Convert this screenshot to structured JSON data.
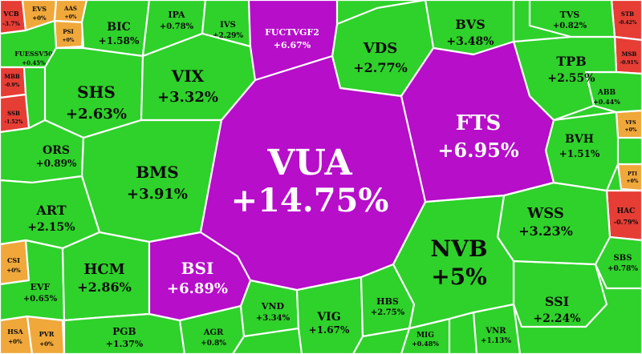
{
  "heatmap": {
    "colors": {
      "up": "#2fd12b",
      "ceiling": "#b60ec9",
      "down": "#e63d35",
      "flat": "#f0a83b"
    },
    "tiles": [
      {
        "symbol": "VUA",
        "change": "+14.75%",
        "status": "ceiling"
      },
      {
        "symbol": "FTS",
        "change": "+6.95%",
        "status": "ceiling"
      },
      {
        "symbol": "BSI",
        "change": "+6.89%",
        "status": "ceiling"
      },
      {
        "symbol": "FUCTVGF2",
        "change": "+6.67%",
        "status": "ceiling"
      },
      {
        "symbol": "NVB",
        "change": "+5%",
        "status": "up"
      },
      {
        "symbol": "BMS",
        "change": "+3.91%",
        "status": "up"
      },
      {
        "symbol": "VIX",
        "change": "+3.32%",
        "status": "up"
      },
      {
        "symbol": "SHS",
        "change": "+2.63%",
        "status": "up"
      },
      {
        "symbol": "VDS",
        "change": "+2.77%",
        "status": "up"
      },
      {
        "symbol": "TPB",
        "change": "+2.55%",
        "status": "up"
      },
      {
        "symbol": "WSS",
        "change": "+3.23%",
        "status": "up"
      },
      {
        "symbol": "HCM",
        "change": "+2.86%",
        "status": "up"
      },
      {
        "symbol": "SSI",
        "change": "+2.24%",
        "status": "up"
      },
      {
        "symbol": "BVS",
        "change": "+3.48%",
        "status": "up"
      },
      {
        "symbol": "ART",
        "change": "+2.15%",
        "status": "up"
      },
      {
        "symbol": "BIC",
        "change": "+1.58%",
        "status": "up"
      },
      {
        "symbol": "BVH",
        "change": "+1.51%",
        "status": "up"
      },
      {
        "symbol": "VND",
        "change": "+3.34%",
        "status": "up"
      },
      {
        "symbol": "VIG",
        "change": "+1.67%",
        "status": "up"
      },
      {
        "symbol": "PGB",
        "change": "+1.37%",
        "status": "up"
      },
      {
        "symbol": "HBS",
        "change": "+2.75%",
        "status": "up"
      },
      {
        "symbol": "ORS",
        "change": "+0.89%",
        "status": "up"
      },
      {
        "symbol": "IPA",
        "change": "+0.78%",
        "status": "up"
      },
      {
        "symbol": "IVS",
        "change": "+2.29%",
        "status": "up"
      },
      {
        "symbol": "TVS",
        "change": "+0.82%",
        "status": "up"
      },
      {
        "symbol": "ABB",
        "change": "+0.44%",
        "status": "up"
      },
      {
        "symbol": "SBS",
        "change": "+0.78%",
        "status": "up"
      },
      {
        "symbol": "EVF",
        "change": "+0.65%",
        "status": "up"
      },
      {
        "symbol": "AGR",
        "change": "+0.8%",
        "status": "up"
      },
      {
        "symbol": "MIG",
        "change": "+0.48%",
        "status": "up"
      },
      {
        "symbol": "VNR",
        "change": "+1.13%",
        "status": "up"
      },
      {
        "symbol": "FUESSV50",
        "change": "+0.45%",
        "status": "up"
      },
      {
        "symbol": "VCB",
        "change": "-3.7%",
        "status": "down"
      },
      {
        "symbol": "MBB",
        "change": "-0.9%",
        "status": "down"
      },
      {
        "symbol": "SSB",
        "change": "-1.52%",
        "status": "down"
      },
      {
        "symbol": "HAC",
        "change": "-0.79%",
        "status": "down"
      },
      {
        "symbol": "STB",
        "change": "-0.42%",
        "status": "down"
      },
      {
        "symbol": "MSB",
        "change": "-0.91%",
        "status": "down"
      },
      {
        "symbol": "EVS",
        "change": "+0%",
        "status": "flat"
      },
      {
        "symbol": "AAS",
        "change": "+0%",
        "status": "flat"
      },
      {
        "symbol": "PSI",
        "change": "+0%",
        "status": "flat"
      },
      {
        "symbol": "CSI",
        "change": "+0%",
        "status": "flat"
      },
      {
        "symbol": "HSA",
        "change": "+0%",
        "status": "flat"
      },
      {
        "symbol": "PVR",
        "change": "+0%",
        "status": "flat"
      },
      {
        "symbol": "VFS",
        "change": "+0%",
        "status": "flat"
      },
      {
        "symbol": "PTI",
        "change": "+0%",
        "status": "flat"
      }
    ]
  }
}
